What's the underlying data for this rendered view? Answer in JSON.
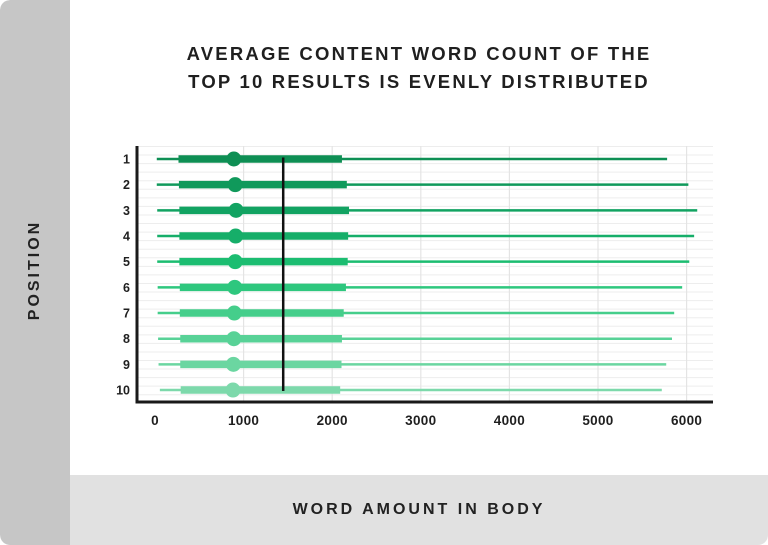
{
  "title": {
    "line1": "AVERAGE CONTENT WORD COUNT OF THE",
    "line2": "TOP 10 RESULTS IS EVENLY DISTRIBUTED"
  },
  "y_axis_panel": {
    "label": "POSITION"
  },
  "x_axis_panel": {
    "label": "WORD AMOUNT IN BODY"
  },
  "colors": {
    "sidebar_bg": "#c6c6c6",
    "bottom_bg": "#e1e1e1",
    "grid": "#ededed",
    "axis": "#1a1a1a",
    "reference_line": "#111111",
    "text": "#1f1f1f"
  },
  "chart_data": {
    "type": "boxplot",
    "orientation": "horizontal",
    "title": "AVERAGE CONTENT WORD COUNT OF THE TOP 10 RESULTS IS EVENLY DISTRIBUTED",
    "xlabel": "WORD AMOUNT IN BODY",
    "ylabel": "POSITION",
    "x_ticks": [
      0,
      1000,
      2000,
      3000,
      4000,
      5000,
      6000
    ],
    "xlim": [
      0,
      6300
    ],
    "grid": true,
    "reference_line": {
      "value": 1447
    },
    "categories": [
      "1",
      "2",
      "3",
      "4",
      "5",
      "6",
      "7",
      "8",
      "9",
      "10"
    ],
    "rows": [
      {
        "position": "1",
        "min": 20,
        "q1": 265,
        "mean": 890,
        "q3": 2110,
        "max": 5780,
        "color": "#0e8f54"
      },
      {
        "position": "2",
        "min": 20,
        "q1": 270,
        "mean": 905,
        "q3": 2165,
        "max": 6020,
        "color": "#10995b"
      },
      {
        "position": "3",
        "min": 25,
        "q1": 275,
        "mean": 915,
        "q3": 2190,
        "max": 6120,
        "color": "#12a362"
      },
      {
        "position": "4",
        "min": 25,
        "q1": 275,
        "mean": 910,
        "q3": 2180,
        "max": 6085,
        "color": "#16ae69"
      },
      {
        "position": "5",
        "min": 25,
        "q1": 275,
        "mean": 905,
        "q3": 2175,
        "max": 6030,
        "color": "#1cbd71"
      },
      {
        "position": "6",
        "min": 30,
        "q1": 280,
        "mean": 900,
        "q3": 2155,
        "max": 5950,
        "color": "#2ec77e"
      },
      {
        "position": "7",
        "min": 30,
        "q1": 280,
        "mean": 895,
        "q3": 2130,
        "max": 5860,
        "color": "#45ce8b"
      },
      {
        "position": "8",
        "min": 35,
        "q1": 285,
        "mean": 890,
        "q3": 2110,
        "max": 5835,
        "color": "#58d297"
      },
      {
        "position": "9",
        "min": 40,
        "q1": 285,
        "mean": 885,
        "q3": 2105,
        "max": 5770,
        "color": "#6bd6a1"
      },
      {
        "position": "10",
        "min": 55,
        "q1": 290,
        "mean": 880,
        "q3": 2090,
        "max": 5720,
        "color": "#7dd9ab"
      }
    ]
  }
}
